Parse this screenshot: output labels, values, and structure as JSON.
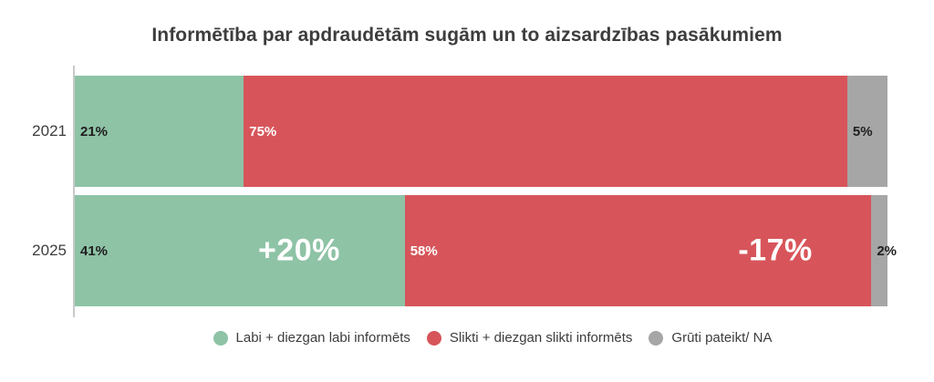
{
  "chart_data": {
    "type": "bar",
    "orientation": "horizontal-stacked",
    "title": "Informētība par apdraudētām sugām un to aizsardzības pasākumiem",
    "categories": [
      "2021",
      "2025"
    ],
    "series": [
      {
        "name": "Labi + diezgan labi informēts",
        "color": "#8ec3a6",
        "values": [
          21,
          41
        ]
      },
      {
        "name": "Slikti + diezgan slikti informēts",
        "color": "#d7555a",
        "values": [
          75,
          58
        ]
      },
      {
        "name": "Grūti pateikt/ NA",
        "color": "#a6a6a6",
        "values": [
          5,
          2
        ]
      }
    ],
    "value_suffix": "%",
    "annotations": [
      {
        "row": "2025",
        "segment": "Labi + diezgan labi informēts",
        "text": "+20%"
      },
      {
        "row": "2025",
        "segment": "Slikti + diezgan slikti informēts",
        "text": "-17%"
      }
    ],
    "legend_position": "bottom",
    "grid": false,
    "axis_line_color": "#c9c9c9"
  },
  "bars": [
    {
      "year": "2021",
      "segments": [
        {
          "label": "21%"
        },
        {
          "label": "75%"
        },
        {
          "label": "5%"
        }
      ]
    },
    {
      "year": "2025",
      "segments": [
        {
          "label": "41%"
        },
        {
          "label": "58%"
        },
        {
          "label": "2%"
        }
      ]
    }
  ]
}
